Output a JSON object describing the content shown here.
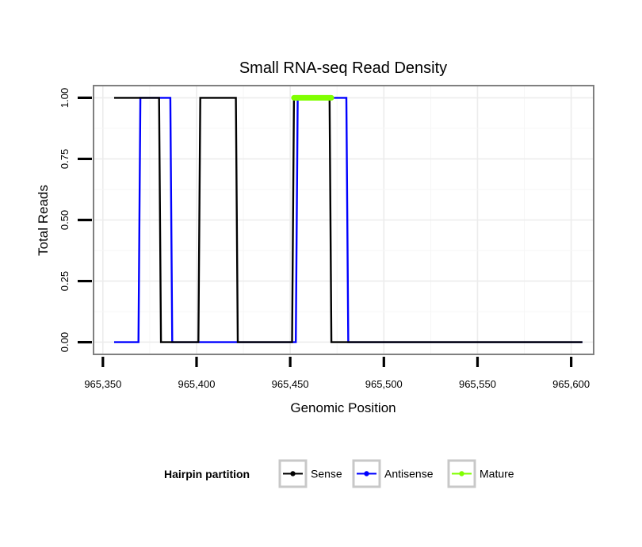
{
  "chart_data": {
    "type": "line",
    "title": "Small RNA-seq Read Density",
    "xlabel": "Genomic Position",
    "ylabel": "Total Reads",
    "xlim": [
      965345,
      965612
    ],
    "ylim": [
      -0.05,
      1.05
    ],
    "x_ticks": [
      965350,
      965400,
      965450,
      965500,
      965550,
      965600
    ],
    "x_tick_labels": [
      "965,350",
      "965,400",
      "965,450",
      "965,500",
      "965,550",
      "965,600"
    ],
    "y_ticks": [
      0,
      0.25,
      0.5,
      0.75,
      1
    ],
    "y_tick_labels": [
      "0.00",
      "0.25",
      "0.50",
      "0.75",
      "1.00"
    ],
    "grid": true,
    "legend": {
      "title": "Hairpin partition",
      "position": "bottom",
      "entries": [
        "Sense",
        "Antisense",
        "Mature"
      ]
    },
    "series": [
      {
        "name": "Antisense",
        "color": "#0000ff",
        "x": [
          965356,
          965369,
          965370,
          965386,
          965387,
          965401,
          965402,
          965422,
          965423,
          965453,
          965454,
          965480,
          965481,
          965606
        ],
        "y": [
          0,
          0,
          1,
          1,
          0,
          0,
          0,
          0,
          0,
          0,
          1,
          1,
          0,
          0
        ]
      },
      {
        "name": "Sense",
        "color": "#000000",
        "x": [
          965356,
          965380,
          965381,
          965401,
          965402,
          965421,
          965422,
          965451,
          965452,
          965471,
          965472,
          965606
        ],
        "y": [
          1,
          1,
          0,
          0,
          1,
          1,
          0,
          0,
          1,
          1,
          0,
          0
        ]
      },
      {
        "name": "Mature",
        "color": "#80ff00",
        "x": [
          965452,
          965472
        ],
        "y": [
          1,
          1
        ]
      }
    ]
  }
}
